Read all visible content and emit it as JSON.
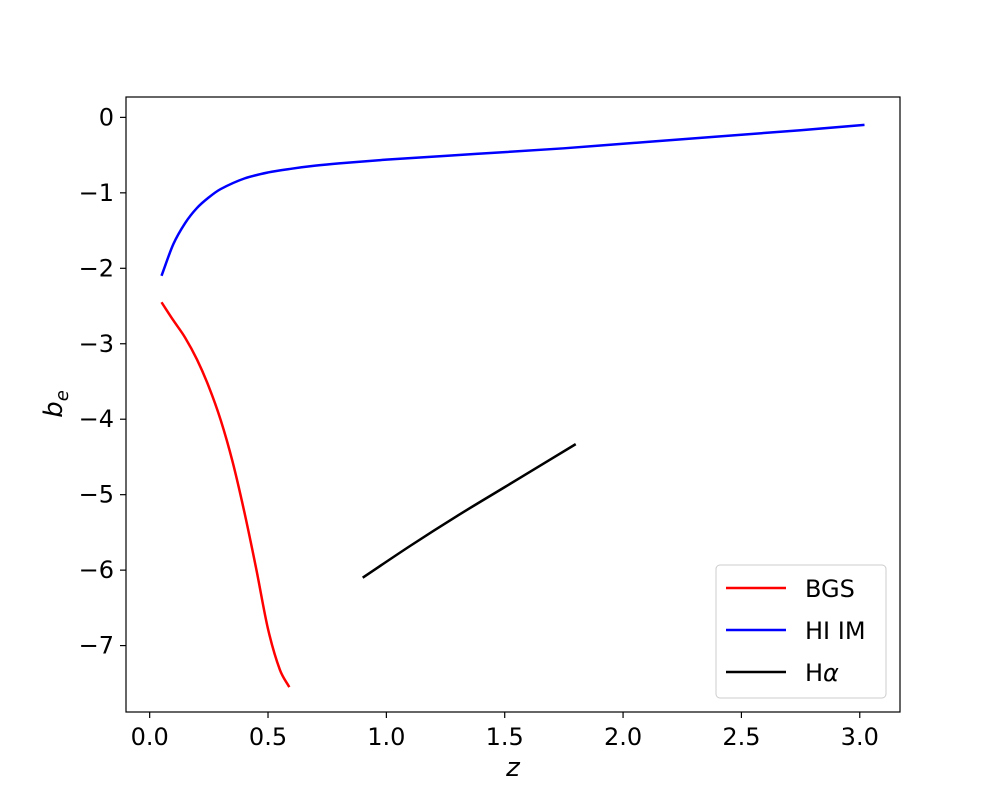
{
  "chart_data": {
    "type": "line",
    "xlabel": "z",
    "ylabel": {
      "main": "b",
      "sub": "e"
    },
    "xlim": [
      -0.1,
      3.17
    ],
    "ylim": [
      -7.88,
      0.27
    ],
    "xticks": [
      0.0,
      0.5,
      1.0,
      1.5,
      2.0,
      2.5,
      3.0
    ],
    "xtick_labels": [
      "0.0",
      "0.5",
      "1.0",
      "1.5",
      "2.0",
      "2.5",
      "3.0"
    ],
    "yticks": [
      0,
      -1,
      -2,
      -3,
      -4,
      -5,
      -6,
      -7
    ],
    "ytick_labels": [
      "0",
      "−1",
      "−2",
      "−3",
      "−4",
      "−5",
      "−6",
      "−7"
    ],
    "grid": false,
    "legend": {
      "position": "bottom-right",
      "entries": [
        {
          "label": "BGS",
          "color": "#ff0000"
        },
        {
          "label": "HI IM",
          "color": "#0000ff"
        },
        {
          "label_main": "H",
          "label_greek": "α",
          "color": "#000000"
        }
      ]
    },
    "series": [
      {
        "name": "BGS",
        "color": "#ff0000",
        "x": [
          0.05,
          0.1,
          0.15,
          0.2,
          0.25,
          0.3,
          0.35,
          0.4,
          0.45,
          0.5,
          0.55,
          0.59
        ],
        "y": [
          -2.45,
          -2.69,
          -2.92,
          -3.21,
          -3.57,
          -4.01,
          -4.56,
          -5.23,
          -5.98,
          -6.78,
          -7.32,
          -7.55
        ]
      },
      {
        "name": "HI IM",
        "color": "#0000ff",
        "x": [
          0.05,
          0.1,
          0.15,
          0.2,
          0.25,
          0.3,
          0.4,
          0.5,
          0.6,
          0.7,
          0.8,
          1.0,
          1.25,
          1.5,
          1.75,
          2.0,
          2.25,
          2.5,
          2.75,
          3.02
        ],
        "y": [
          -2.1,
          -1.68,
          -1.4,
          -1.2,
          -1.06,
          -0.95,
          -0.81,
          -0.73,
          -0.68,
          -0.64,
          -0.61,
          -0.56,
          -0.51,
          -0.46,
          -0.41,
          -0.35,
          -0.29,
          -0.23,
          -0.17,
          -0.1
        ]
      },
      {
        "name": "Hα",
        "color": "#000000",
        "x": [
          0.9,
          1.1,
          1.3,
          1.5,
          1.7,
          1.8
        ],
        "y": [
          -6.1,
          -5.68,
          -5.28,
          -4.9,
          -4.52,
          -4.33
        ]
      }
    ]
  }
}
